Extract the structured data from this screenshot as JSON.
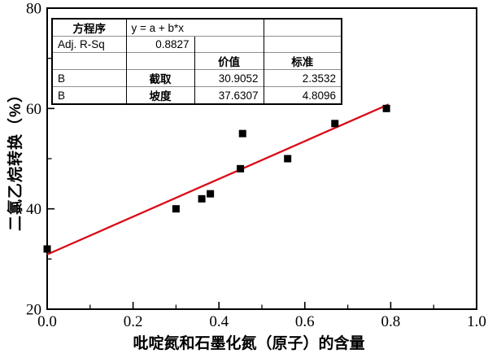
{
  "chart_data": {
    "type": "scatter",
    "title": "",
    "xlabel": "吡啶氮和石墨化氮（原子）的含量",
    "ylabel": "二氯乙烷转换（%）",
    "xlim": [
      0.0,
      1.0
    ],
    "ylim": [
      20,
      80
    ],
    "grid": false,
    "x_major_ticks": [
      0.0,
      0.2,
      0.4,
      0.6,
      0.8,
      1.0
    ],
    "x_tick_labels": [
      "0.0",
      "0.2",
      "0.4",
      "0.6",
      "0.8",
      "1.0"
    ],
    "x_minor_ticks": [
      0.1,
      0.3,
      0.5,
      0.7,
      0.9
    ],
    "y_major_ticks": [
      20,
      40,
      60,
      80
    ],
    "y_tick_labels": [
      "20",
      "40",
      "60",
      "80"
    ],
    "y_minor_ticks": [
      30,
      50,
      70
    ],
    "points": [
      {
        "x": 0.0,
        "y": 32
      },
      {
        "x": 0.3,
        "y": 40
      },
      {
        "x": 0.36,
        "y": 42
      },
      {
        "x": 0.38,
        "y": 43
      },
      {
        "x": 0.45,
        "y": 48
      },
      {
        "x": 0.455,
        "y": 55
      },
      {
        "x": 0.56,
        "y": 50
      },
      {
        "x": 0.67,
        "y": 57
      },
      {
        "x": 0.79,
        "y": 60
      }
    ],
    "marker": {
      "shape": "square",
      "color": "#000000",
      "size": 9
    },
    "fit_line": {
      "equation": "y = a + b*x",
      "intercept": 30.9052,
      "slope": 37.6307,
      "x_start": 0.0,
      "x_end": 0.795,
      "color": "#db0a16"
    },
    "stats_table": {
      "rows": [
        [
          "方程序",
          "y = a + b*x",
          "",
          ""
        ],
        [
          "Adj. R-Sq",
          "0.8827",
          "",
          ""
        ],
        [
          "",
          "",
          "价值",
          "标准"
        ],
        [
          "B",
          "截取",
          "30.9052",
          "2.3532"
        ],
        [
          "B",
          "坡度",
          "37.6307",
          "4.8096"
        ]
      ]
    }
  },
  "colors": {
    "background": "#ffffff",
    "axis": "#000000",
    "marker": "#000000",
    "fit_line": "#db0a16",
    "table_inner_border": "#8f8f8f"
  }
}
